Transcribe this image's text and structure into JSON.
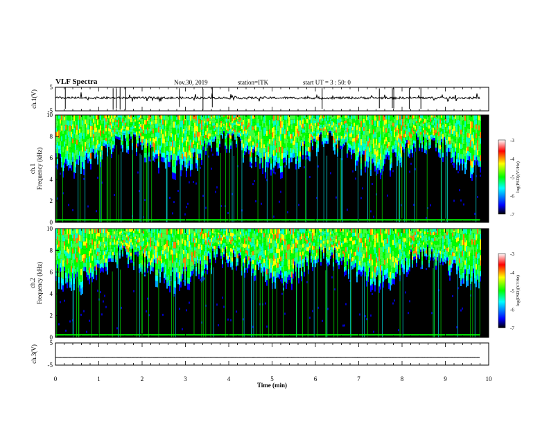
{
  "header": {
    "title": "VLF Spectra",
    "date": "Nov.30, 2019",
    "station": "station=ITK",
    "start": "start UT = 3 : 50: 0"
  },
  "chart_data": [
    {
      "type": "line",
      "name": "ch1-waveform",
      "ylabel": "ch.1(V)",
      "ylim": [
        -5,
        5
      ],
      "yticks": [
        "5",
        "-5"
      ],
      "xlim": [
        0,
        10
      ],
      "baseline": 0.5
    },
    {
      "type": "heatmap",
      "name": "ch1-spectrogram",
      "ylabel_line1": "ch.1",
      "ylabel_line2": "Frequency (kHz)",
      "ylim": [
        0,
        10
      ],
      "yticks": [
        "0",
        "2",
        "4",
        "6",
        "8",
        "10"
      ],
      "xlim": [
        0,
        10
      ],
      "colorbar": {
        "label": "log(PSD)(V²/Hz)",
        "ticks": [
          "-3",
          "-4",
          "-5",
          "-6",
          "-7"
        ],
        "range": [
          -7,
          -3
        ]
      },
      "colors": [
        "#000000",
        "#0000ff",
        "#00ffff",
        "#00ff00",
        "#ffff00",
        "#ff0000",
        "#ffffff"
      ]
    },
    {
      "type": "heatmap",
      "name": "ch2-spectrogram",
      "ylabel_line1": "ch.2",
      "ylabel_line2": "Frequency (kHz)",
      "ylim": [
        0,
        10
      ],
      "yticks": [
        "0",
        "2",
        "4",
        "6",
        "8",
        "10"
      ],
      "xlim": [
        0,
        10
      ],
      "colorbar": {
        "label": "log(PSD)(V²/Hz)",
        "ticks": [
          "-3",
          "-4",
          "-5",
          "-6",
          "-7"
        ],
        "range": [
          -7,
          -3
        ]
      },
      "colors": [
        "#000000",
        "#0000ff",
        "#00ffff",
        "#00ff00",
        "#ffff00",
        "#ff0000",
        "#ffffff"
      ]
    },
    {
      "type": "line",
      "name": "ch3-waveform",
      "ylabel": "ch.3(V)",
      "ylim": [
        -5,
        5
      ],
      "yticks": [
        "5",
        "-5"
      ],
      "xlim": [
        0,
        10
      ],
      "baseline": -1.5,
      "xlabel": "Time (min)",
      "xticks": [
        "0",
        "1",
        "2",
        "3",
        "4",
        "5",
        "6",
        "7",
        "8",
        "9",
        "10"
      ],
      "data_end_x": 9.8
    }
  ]
}
